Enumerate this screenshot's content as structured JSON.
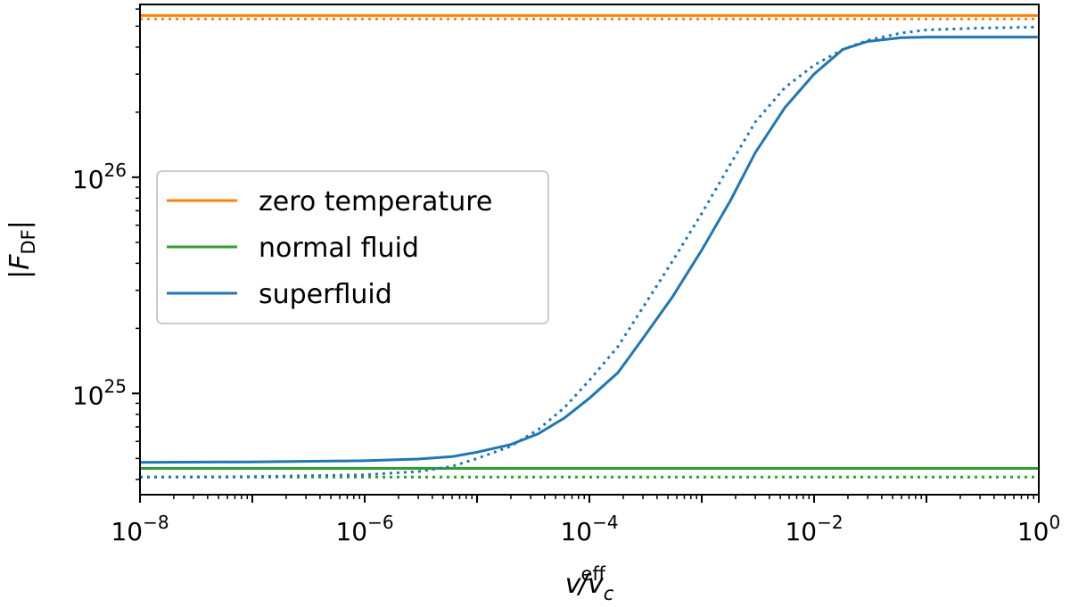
{
  "chart_data": {
    "type": "line",
    "xscale": "log",
    "yscale": "log",
    "xlim": [
      1e-08,
      1
    ],
    "ylim": [
      3.4e+24,
      6.3e+26
    ],
    "x_ticks": [
      {
        "exp": "−8"
      },
      {
        "exp": "−6"
      },
      {
        "exp": "−4"
      },
      {
        "exp": "−2"
      },
      {
        "exp": "0"
      }
    ],
    "y_ticks": [
      {
        "exp": "25"
      },
      {
        "exp": "26"
      }
    ],
    "tick_base": "10",
    "xlabel": {
      "v": "v",
      "sup": "eff",
      "mid": "/v",
      "sub": "c"
    },
    "ylabel": {
      "pre": "|F",
      "sub": "DF",
      "post": "|"
    },
    "legend": {
      "location": "center-left",
      "entries": [
        {
          "label": "zero temperature",
          "color": "#ff7f0e"
        },
        {
          "label": "normal fluid",
          "color": "#2ca02c"
        },
        {
          "label": "superfluid",
          "color": "#1f77b4"
        }
      ]
    },
    "series": [
      {
        "name": "zero temperature",
        "style": "solid",
        "color": "#ff7f0e",
        "x": [
          1e-08,
          1
        ],
        "y": [
          5.6e+26,
          5.6e+26
        ]
      },
      {
        "name": "zero temperature (dotted)",
        "style": "dotted",
        "color": "#ff7f0e",
        "x": [
          1e-08,
          1
        ],
        "y": [
          5.4e+26,
          5.4e+26
        ]
      },
      {
        "name": "normal fluid",
        "style": "solid",
        "color": "#2ca02c",
        "x": [
          1e-08,
          1
        ],
        "y": [
          4.5e+24,
          4.5e+24
        ]
      },
      {
        "name": "normal fluid (dotted)",
        "style": "dotted",
        "color": "#2ca02c",
        "x": [
          1e-08,
          1
        ],
        "y": [
          4.1e+24,
          4.1e+24
        ]
      },
      {
        "name": "superfluid",
        "style": "solid",
        "color": "#1f77b4",
        "x": [
          1e-08,
          1e-07,
          1e-06,
          3e-06,
          6e-06,
          1e-05,
          2e-05,
          3.5e-05,
          6e-05,
          0.0001,
          0.00018,
          0.0003,
          0.00055,
          0.001,
          0.0018,
          0.003,
          0.0055,
          0.01,
          0.018,
          0.03,
          0.06,
          0.1,
          1
        ],
        "y": [
          4.8e+24,
          4.82e+24,
          4.88e+24,
          4.97e+24,
          5.1e+24,
          5.35e+24,
          5.8e+24,
          6.5e+24,
          7.7e+24,
          9.5e+24,
          1.25e+25,
          1.8e+25,
          2.8e+25,
          4.6e+25,
          7.8e+25,
          1.3e+26,
          2.1e+26,
          3e+26,
          3.9e+26,
          4.25e+26,
          4.42e+26,
          4.45e+26,
          4.45e+26
        ]
      },
      {
        "name": "superfluid (dotted)",
        "style": "dotted",
        "color": "#1f77b4",
        "x": [
          1e-08,
          1e-07,
          1e-06,
          3e-06,
          6e-06,
          1e-05,
          2e-05,
          3.5e-05,
          6e-05,
          0.0001,
          0.00018,
          0.0003,
          0.00055,
          0.001,
          0.0018,
          0.003,
          0.0055,
          0.01,
          0.018,
          0.03,
          0.06,
          0.1,
          0.3,
          1
        ],
        "y": [
          4.1e+24,
          4.12e+24,
          4.2e+24,
          4.35e+24,
          4.6e+24,
          5e+24,
          5.7e+24,
          6.8e+24,
          8.6e+24,
          1.15e+25,
          1.65e+25,
          2.5e+25,
          4.1e+25,
          6.8e+25,
          1.15e+26,
          1.8e+26,
          2.6e+26,
          3.3e+26,
          3.9e+26,
          4.3e+26,
          4.65e+26,
          4.8e+26,
          4.9e+26,
          4.95e+26
        ]
      }
    ]
  }
}
